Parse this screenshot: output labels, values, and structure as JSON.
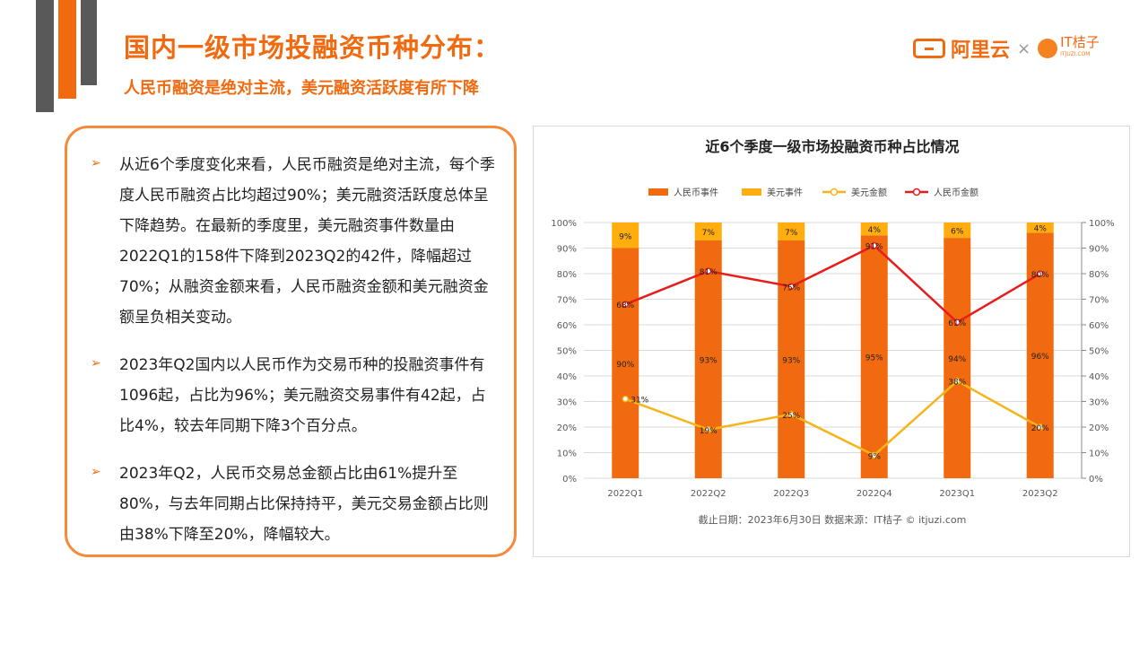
{
  "header": {
    "title": "国内一级市场投融资币种分布：",
    "subtitle": "人民币融资是绝对主流，美元融资活跃度有所下降",
    "logo_aliyun": "阿里云",
    "logo_times": "×",
    "logo_itjuzi": "IT桔子",
    "logo_itjuzi_url": "ITJUZI.COM"
  },
  "bullets": [
    "从近6个季度变化来看，人民币融资是绝对主流，每个季度人民币融资占比均超过90%；美元融资活跃度总体呈下降趋势。在最新的季度里，美元融资事件数量由2022Q1的158件下降到2023Q2的42件，降幅超过70%；从融资金额来看，人民币融资金额和美元融资金额呈负相关变动。",
    "2023年Q2国内以人民币作为交易币种的投融资事件有1096起，占比为96%；美元融资交易事件有42起，占比4%，较去年同期下降3个百分点。",
    "2023年Q2，人民币交易总金额占比由61%提升至80%，与去年同期占比保持持平，美元交易金额占比则由38%下降至20%，降幅较大。"
  ],
  "bullet_icon": "arrow-right-icon",
  "chart_data": {
    "type": "bar",
    "title": "近6个季度一级市场投融资币种占比情况",
    "categories": [
      "2022Q1",
      "2022Q2",
      "2022Q3",
      "2022Q4",
      "2023Q1",
      "2023Q2"
    ],
    "series": [
      {
        "name": "人民币事件",
        "kind": "bar",
        "color": "#f26a0f",
        "values": [
          90,
          93,
          93,
          95,
          94,
          96
        ]
      },
      {
        "name": "美元事件",
        "kind": "bar",
        "color": "#ffad0f",
        "values": [
          9,
          7,
          7,
          4,
          6,
          4
        ]
      },
      {
        "name": "美元金额",
        "kind": "line",
        "color": "#f5b41a",
        "values": [
          31,
          19,
          25,
          9,
          38,
          20
        ]
      },
      {
        "name": "人民币金额",
        "kind": "line",
        "color": "#e81c1c",
        "values": [
          68,
          81,
          75,
          91,
          61,
          80
        ]
      }
    ],
    "y_ticks": [
      "0%",
      "10%",
      "20%",
      "30%",
      "40%",
      "50%",
      "60%",
      "70%",
      "80%",
      "90%",
      "100%"
    ],
    "ylim": [
      0,
      100
    ],
    "grid": true,
    "legend": "top",
    "footnote": "截止日期：2023年6月30日    数据来源：IT桔子 © itjuzi.com"
  }
}
